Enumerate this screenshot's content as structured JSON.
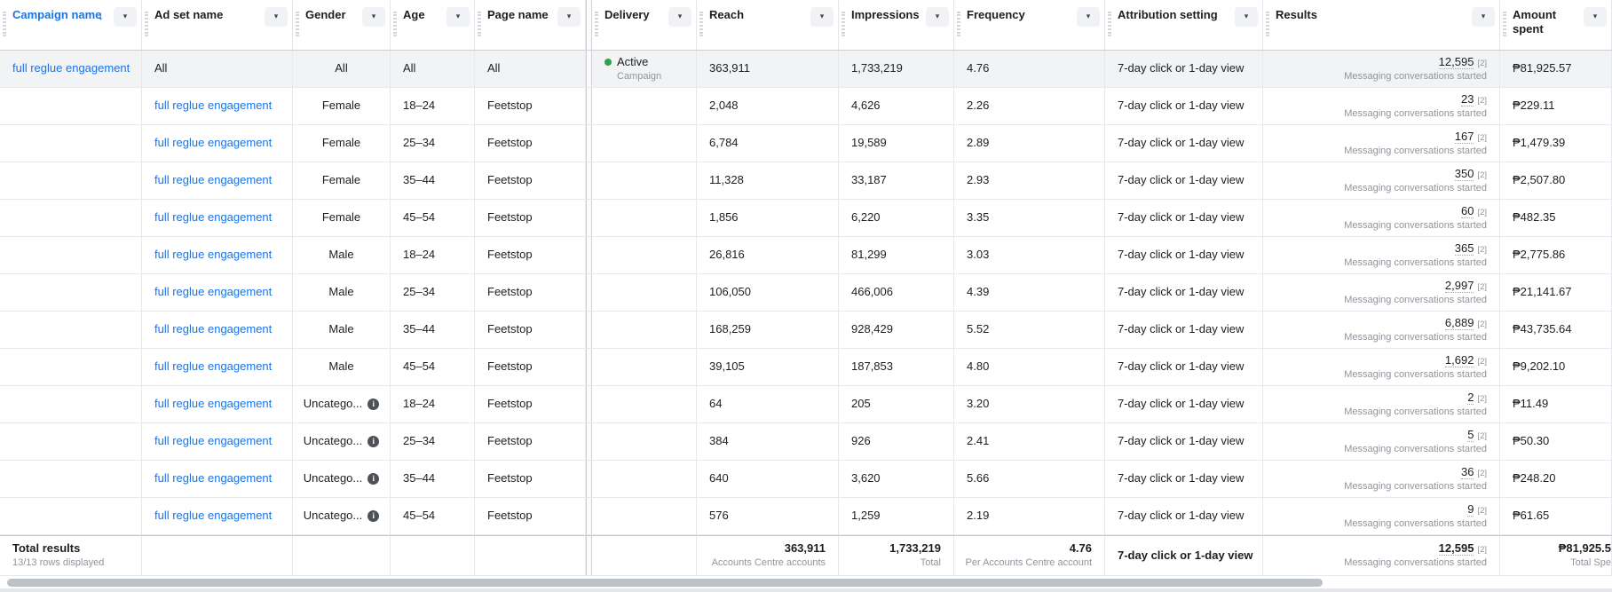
{
  "table": {
    "columns": [
      {
        "id": "campaign_name",
        "label": "Campaign name",
        "sorted_desc": true,
        "accent": true
      },
      {
        "id": "ad_set_name",
        "label": "Ad set name"
      },
      {
        "id": "gender",
        "label": "Gender"
      },
      {
        "id": "age",
        "label": "Age"
      },
      {
        "id": "page_name",
        "label": "Page name"
      },
      {
        "id": "delivery",
        "label": "Delivery"
      },
      {
        "id": "reach",
        "label": "Reach"
      },
      {
        "id": "impressions",
        "label": "Impressions"
      },
      {
        "id": "frequency",
        "label": "Frequency"
      },
      {
        "id": "attribution_setting",
        "label": "Attribution setting"
      },
      {
        "id": "results",
        "label": "Results"
      },
      {
        "id": "amount_spent",
        "label": "Amount spent"
      }
    ],
    "attribution_value": "7-day click or 1-day view",
    "results_footnote": "[2]",
    "results_metric": "Messaging conversations started",
    "rows": [
      {
        "campaign_name": "full reglue engagement",
        "ad_set_name": "All",
        "gender": "All",
        "age": "All",
        "page_name": "All",
        "delivery_status": "Active",
        "delivery_sub": "Campaign",
        "is_summary_row": true,
        "reach": "363,911",
        "impressions": "1,733,219",
        "frequency": "4.76",
        "results": "12,595",
        "amount": "₱81,925.57"
      },
      {
        "ad_set_name": "full reglue engagement",
        "gender": "Female",
        "age": "18–24",
        "page_name": "Feetstop",
        "reach": "2,048",
        "impressions": "4,626",
        "frequency": "2.26",
        "results": "23",
        "amount": "₱229.11"
      },
      {
        "ad_set_name": "full reglue engagement",
        "gender": "Female",
        "age": "25–34",
        "page_name": "Feetstop",
        "reach": "6,784",
        "impressions": "19,589",
        "frequency": "2.89",
        "results": "167",
        "amount": "₱1,479.39"
      },
      {
        "ad_set_name": "full reglue engagement",
        "gender": "Female",
        "age": "35–44",
        "page_name": "Feetstop",
        "reach": "11,328",
        "impressions": "33,187",
        "frequency": "2.93",
        "results": "350",
        "amount": "₱2,507.80"
      },
      {
        "ad_set_name": "full reglue engagement",
        "gender": "Female",
        "age": "45–54",
        "page_name": "Feetstop",
        "reach": "1,856",
        "impressions": "6,220",
        "frequency": "3.35",
        "results": "60",
        "amount": "₱482.35"
      },
      {
        "ad_set_name": "full reglue engagement",
        "gender": "Male",
        "age": "18–24",
        "page_name": "Feetstop",
        "reach": "26,816",
        "impressions": "81,299",
        "frequency": "3.03",
        "results": "365",
        "amount": "₱2,775.86"
      },
      {
        "ad_set_name": "full reglue engagement",
        "gender": "Male",
        "age": "25–34",
        "page_name": "Feetstop",
        "reach": "106,050",
        "impressions": "466,006",
        "frequency": "4.39",
        "results": "2,997",
        "amount": "₱21,141.67"
      },
      {
        "ad_set_name": "full reglue engagement",
        "gender": "Male",
        "age": "35–44",
        "page_name": "Feetstop",
        "reach": "168,259",
        "impressions": "928,429",
        "frequency": "5.52",
        "results": "6,889",
        "amount": "₱43,735.64"
      },
      {
        "ad_set_name": "full reglue engagement",
        "gender": "Male",
        "age": "45–54",
        "page_name": "Feetstop",
        "reach": "39,105",
        "impressions": "187,853",
        "frequency": "4.80",
        "results": "1,692",
        "amount": "₱9,202.10"
      },
      {
        "ad_set_name": "full reglue engagement",
        "gender": "Uncatego...",
        "gender_truncated": true,
        "age": "18–24",
        "page_name": "Feetstop",
        "reach": "64",
        "impressions": "205",
        "frequency": "3.20",
        "results": "2",
        "amount": "₱11.49"
      },
      {
        "ad_set_name": "full reglue engagement",
        "gender": "Uncatego...",
        "gender_truncated": true,
        "age": "25–34",
        "page_name": "Feetstop",
        "reach": "384",
        "impressions": "926",
        "frequency": "2.41",
        "results": "5",
        "amount": "₱50.30"
      },
      {
        "ad_set_name": "full reglue engagement",
        "gender": "Uncatego...",
        "gender_truncated": true,
        "age": "35–44",
        "page_name": "Feetstop",
        "reach": "640",
        "impressions": "3,620",
        "frequency": "5.66",
        "results": "36",
        "amount": "₱248.20"
      },
      {
        "ad_set_name": "full reglue engagement",
        "gender": "Uncatego...",
        "gender_truncated": true,
        "age": "45–54",
        "page_name": "Feetstop",
        "reach": "576",
        "impressions": "1,259",
        "frequency": "2.19",
        "results": "9",
        "amount": "₱61.65"
      }
    ],
    "totals": {
      "label": "Total results",
      "rows_displayed": "13/13 rows displayed",
      "reach": "363,911",
      "reach_sub": "Accounts Centre accounts",
      "impressions": "1,733,219",
      "impressions_sub": "Total",
      "frequency": "4.76",
      "frequency_sub": "Per Accounts Centre account",
      "attribution": "7-day click or 1-day view",
      "results": "12,595",
      "amount_display": "₱81,925.5",
      "amount_sub_display": "Total Spe"
    },
    "icons": {
      "sort_descending": "↓",
      "column_menu_chevron": "▾",
      "active_status_dot": "green-dot",
      "gender_info": "info-icon"
    },
    "colors": {
      "link_blue": "#1b74e4",
      "active_green": "#31a24c",
      "subtext_gray": "#90949c",
      "summary_row_bg": "#f2f3f5",
      "grid_border": "#e6e8eb"
    }
  }
}
